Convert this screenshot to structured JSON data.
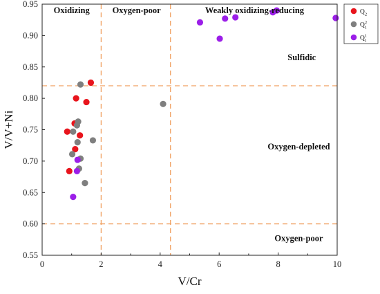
{
  "chart_data": {
    "type": "scatter",
    "title": "",
    "xlabel": "V/Cr",
    "ylabel": "V/V+Ni",
    "xlim": [
      0,
      10
    ],
    "ylim": [
      0.55,
      0.95
    ],
    "x_ticks": [
      0,
      2,
      4,
      6,
      8,
      10
    ],
    "y_ticks": [
      0.55,
      0.6,
      0.65,
      0.7,
      0.75,
      0.8,
      0.85,
      0.9,
      0.95
    ],
    "grid": false,
    "legend_position": "top-right",
    "threshold_lines": {
      "vertical_x": [
        2,
        4.35
      ],
      "horizontal_y": [
        0.82,
        0.6
      ],
      "color": "#f0a060",
      "style": "dashed"
    },
    "region_labels": [
      {
        "id": "oxidizing",
        "text": "Oxidizing",
        "x": 1.0,
        "y": 0.94
      },
      {
        "id": "oxygen-poor-top",
        "text": "Oxygen-poor",
        "x": 3.2,
        "y": 0.94
      },
      {
        "id": "weakly",
        "text": "Weakly oxidizing-reducing",
        "x": 7.2,
        "y": 0.94
      },
      {
        "id": "sulfidic",
        "text": "Sulfidic",
        "x": 8.8,
        "y": 0.865
      },
      {
        "id": "oxygen-depleted",
        "text": "Oxygen-depleted",
        "x": 8.7,
        "y": 0.723
      },
      {
        "id": "oxygen-poor-bottom",
        "text": "Oxygen-poor",
        "x": 8.7,
        "y": 0.577
      }
    ],
    "series": [
      {
        "name": "Q",
        "sub": "2",
        "sup": "",
        "color": "#e8141c",
        "points": [
          [
            1.65,
            0.825
          ],
          [
            1.15,
            0.8
          ],
          [
            1.5,
            0.794
          ],
          [
            1.1,
            0.76
          ],
          [
            0.85,
            0.747
          ],
          [
            1.28,
            0.741
          ],
          [
            1.12,
            0.719
          ],
          [
            0.92,
            0.684
          ]
        ]
      },
      {
        "name": "Q",
        "sub": "1",
        "sup": "2",
        "color": "#7f7f7f",
        "points": [
          [
            1.3,
            0.822
          ],
          [
            4.1,
            0.791
          ],
          [
            1.22,
            0.763
          ],
          [
            1.18,
            0.757
          ],
          [
            1.05,
            0.747
          ],
          [
            1.72,
            0.733
          ],
          [
            1.2,
            0.73
          ],
          [
            1.02,
            0.711
          ],
          [
            1.3,
            0.704
          ],
          [
            1.25,
            0.688
          ],
          [
            1.45,
            0.665
          ]
        ]
      },
      {
        "name": "Q",
        "sub": "1",
        "sup": "1",
        "color": "#9b1ee8",
        "points": [
          [
            5.35,
            0.921
          ],
          [
            6.2,
            0.927
          ],
          [
            6.55,
            0.929
          ],
          [
            6.02,
            0.895
          ],
          [
            7.82,
            0.937
          ],
          [
            7.95,
            0.94
          ],
          [
            9.95,
            0.928
          ],
          [
            1.2,
            0.702
          ],
          [
            1.18,
            0.684
          ],
          [
            1.05,
            0.643
          ]
        ]
      }
    ]
  }
}
